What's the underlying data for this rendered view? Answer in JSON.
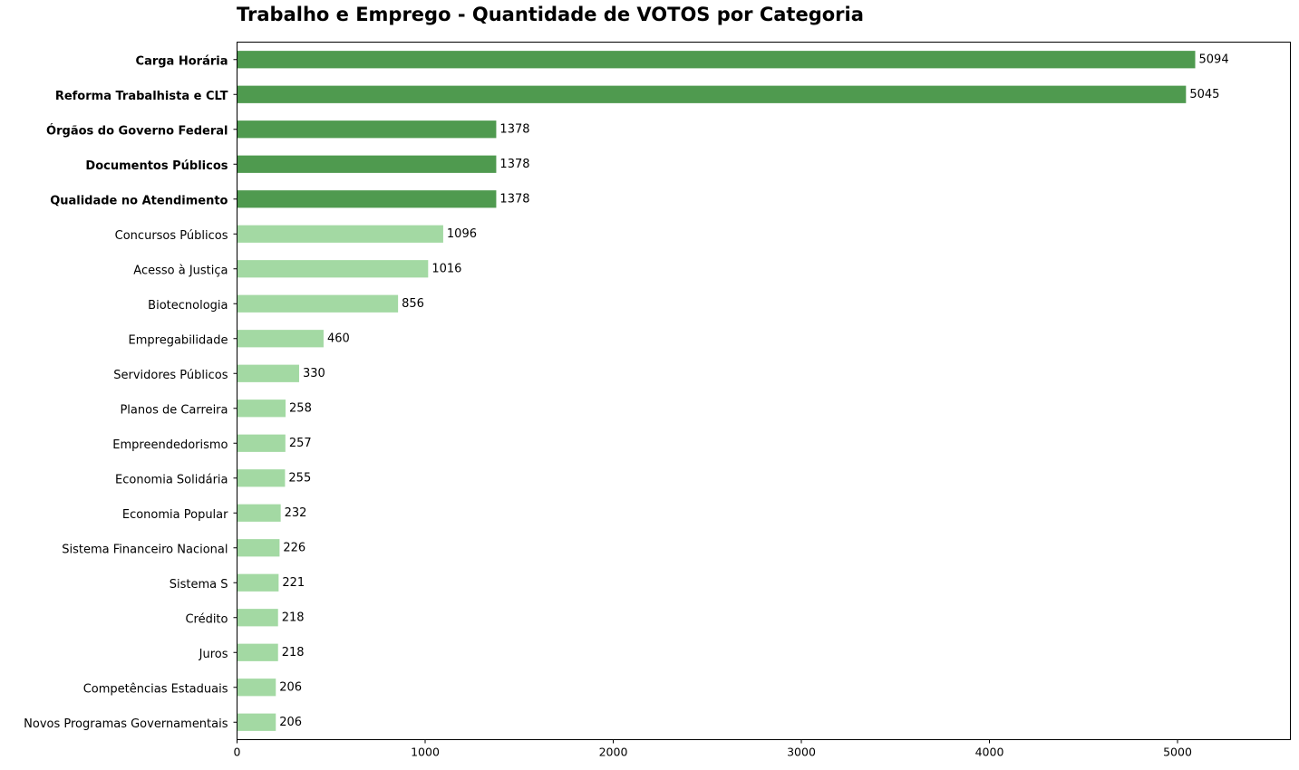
{
  "chart_data": {
    "type": "bar",
    "orientation": "horizontal",
    "title": "Trabalho e Emprego - Quantidade de VOTOS por Categoria",
    "xlabel": "",
    "ylabel": "",
    "xlim": [
      0,
      5600
    ],
    "x_ticks": [
      0,
      1000,
      2000,
      3000,
      4000,
      5000
    ],
    "grid": false,
    "categories": [
      "Carga Horária",
      "Reforma Trabalhista e CLT",
      "Órgãos do Governo Federal",
      "Documentos Públicos",
      "Qualidade no Atendimento",
      "Concursos Públicos",
      "Acesso à Justiça",
      "Biotecnologia",
      "Empregabilidade",
      "Servidores Públicos",
      "Planos de Carreira",
      "Empreendedorismo",
      "Economia Solidária",
      "Economia Popular",
      "Sistema Financeiro Nacional",
      "Sistema S",
      "Crédito",
      "Juros",
      "Competências Estaduais",
      "Novos Programas Governamentais"
    ],
    "values": [
      5094,
      5045,
      1378,
      1378,
      1378,
      1096,
      1016,
      856,
      460,
      330,
      258,
      257,
      255,
      232,
      226,
      221,
      218,
      218,
      206,
      206
    ],
    "highlighted_top_n": 5,
    "colors": {
      "highlight": "#4f9a4f",
      "normal": "#a3d9a3"
    }
  }
}
